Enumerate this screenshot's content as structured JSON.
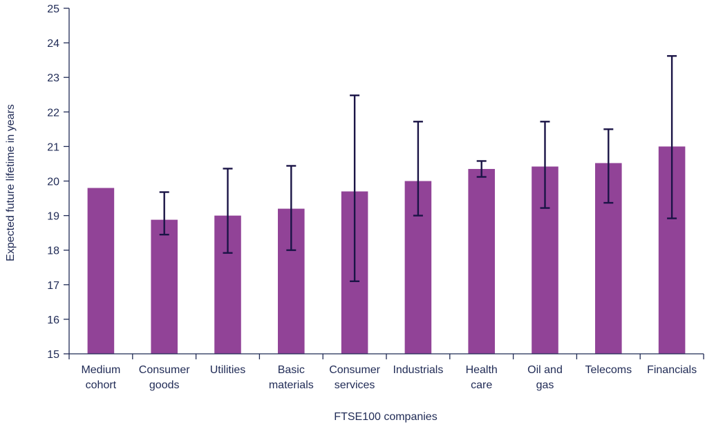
{
  "chart_data": {
    "type": "bar",
    "title": "",
    "xlabel": "FTSE100 companies",
    "ylabel": "Expected future lifetime in years",
    "ylim": [
      15,
      25
    ],
    "yticks": [
      15,
      16,
      17,
      18,
      19,
      20,
      21,
      22,
      23,
      24,
      25
    ],
    "grid": false,
    "legend": "none",
    "categories": [
      [
        "Medium",
        "cohort"
      ],
      [
        "Consumer",
        "goods"
      ],
      [
        "Utilities"
      ],
      [
        "Basic",
        "materials"
      ],
      [
        "Consumer",
        "services"
      ],
      [
        "Industrials"
      ],
      [
        "Health",
        "care"
      ],
      [
        "Oil and",
        "gas"
      ],
      [
        "Telecoms"
      ],
      [
        "Financials"
      ]
    ],
    "values": [
      19.8,
      18.88,
      19.0,
      19.2,
      19.7,
      20.0,
      20.35,
      20.42,
      20.52,
      21.0
    ],
    "error_low": [
      null,
      18.45,
      17.92,
      18.0,
      17.1,
      19.0,
      20.12,
      19.22,
      19.37,
      18.92
    ],
    "error_high": [
      null,
      19.68,
      20.36,
      20.44,
      22.48,
      21.72,
      20.58,
      21.72,
      21.5,
      23.62
    ],
    "colors": {
      "bar": "#914397",
      "error_bar": "#1a1446",
      "axis": "#1f2a55",
      "text": "#1f2a55"
    }
  }
}
